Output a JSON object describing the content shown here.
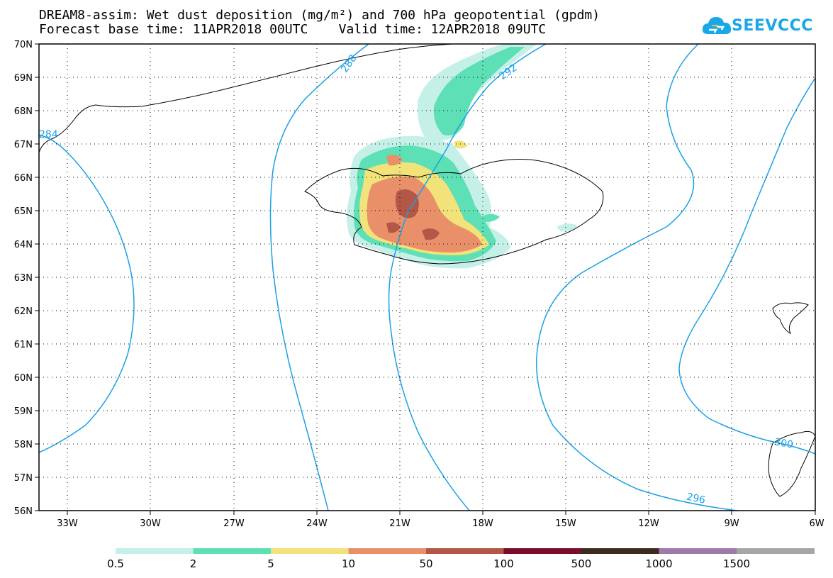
{
  "title_line1": "DREAM8-assim: Wet dust deposition (mg/m²) and 700 hPa geopotential (gpdm)",
  "title_line2": "Forecast base time: 11APR2018 00UTC    Valid time: 12APR2018 09UTC",
  "logo": {
    "text": "SEEVCCC",
    "icon": "cloud-logo-icon",
    "color": "#1aa7e8"
  },
  "lat_labels": [
    "70N",
    "69N",
    "68N",
    "67N",
    "66N",
    "65N",
    "64N",
    "63N",
    "62N",
    "61N",
    "60N",
    "59N",
    "58N",
    "57N",
    "56N"
  ],
  "lon_labels": [
    "33W",
    "30W",
    "27W",
    "24W",
    "21W",
    "18W",
    "15W",
    "12W",
    "9W",
    "6W"
  ],
  "contour_labels": [
    "288",
    "292",
    "296",
    "284",
    "300"
  ],
  "contour_color": "#1aa0e6",
  "legend": {
    "colors": [
      "#c4f0e8",
      "#5ee0b6",
      "#f2e27a",
      "#e9906a",
      "#b35747",
      "#7a0d2a",
      "#3b2a1e",
      "#9f7aa8",
      "#a5a5a5"
    ],
    "labels": [
      "0.5",
      "2",
      "5",
      "10",
      "50",
      "100",
      "500",
      "1000",
      "1500"
    ]
  }
}
